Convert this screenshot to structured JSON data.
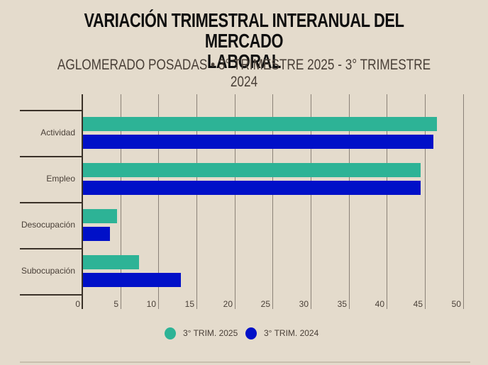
{
  "header": {
    "title_line1": "VARIACIÓN TRIMESTRAL INTERANUAL DEL MERCADO",
    "title_line2": "LABORAL",
    "subtitle": "AGLOMERADO POSADAS • 3° TRIMESTRE 2025 - 3° TRIMESTRE 2024"
  },
  "legend": {
    "items": [
      {
        "label": "3° TRIM. 2025",
        "color": "#2db396"
      },
      {
        "label": "3° TRIM. 2024",
        "color": "#0010c8"
      }
    ]
  },
  "axis": {
    "ticks": [
      "0",
      "5",
      "10",
      "15",
      "20",
      "25",
      "30",
      "35",
      "40",
      "45",
      "50"
    ]
  },
  "categories": [
    {
      "label": "Actividad"
    },
    {
      "label": "Empleo"
    },
    {
      "label": "Desocupación"
    },
    {
      "label": "Subocupación"
    }
  ],
  "chart_data": {
    "type": "bar",
    "orientation": "horizontal",
    "title": "VARIACIÓN TRIMESTRAL INTERANUAL DEL MERCADO LABORAL",
    "subtitle": "AGLOMERADO POSADAS • 3° TRIMESTRE 2025 - 3° TRIMESTRE 2024",
    "categories": [
      "Actividad",
      "Empleo",
      "Desocupación",
      "Subocupación"
    ],
    "series": [
      {
        "name": "3° TRIM. 2025",
        "color": "#2db396",
        "values": [
          46.5,
          44.4,
          4.5,
          7.4
        ]
      },
      {
        "name": "3° TRIM. 2024",
        "color": "#0010c8",
        "values": [
          46.0,
          44.4,
          3.5,
          12.9
        ]
      }
    ],
    "xlabel": "",
    "ylabel": "",
    "xlim": [
      0,
      50
    ],
    "xticks": [
      0,
      5,
      10,
      15,
      20,
      25,
      30,
      35,
      40,
      45,
      50
    ],
    "grid": true,
    "legend_position": "bottom"
  }
}
